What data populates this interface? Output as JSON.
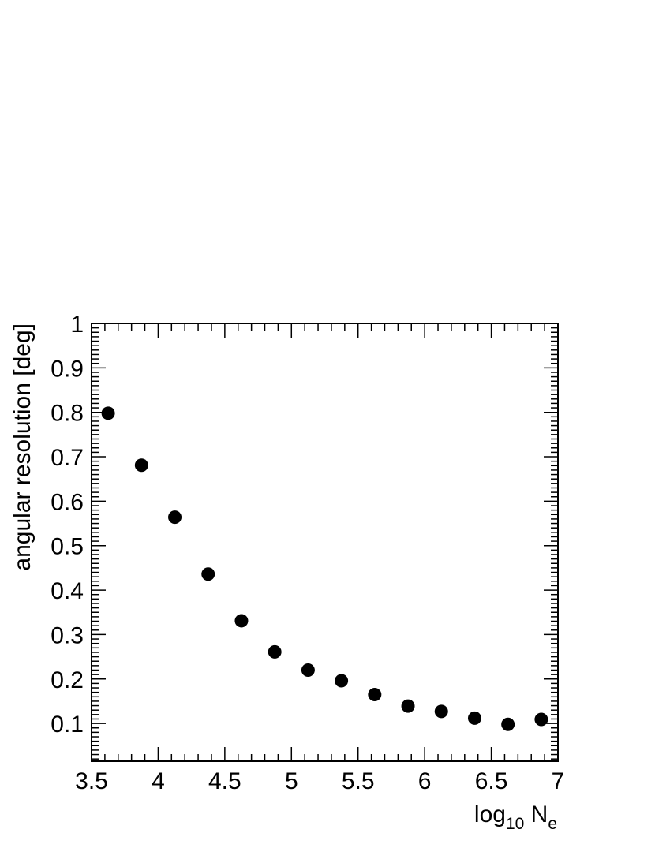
{
  "chart_data": {
    "type": "scatter",
    "title": "",
    "xlabel": "log",
    "xlabel_sub": "10",
    "xlabel_tail": " N",
    "xlabel_tail_sub": "e",
    "ylabel": "angular resolution [deg]",
    "xlim": [
      3.5,
      7
    ],
    "ylim": [
      0.015,
      1.0
    ],
    "xticks": [
      3.5,
      4,
      4.5,
      5,
      5.5,
      6,
      6.5,
      7
    ],
    "xtick_labels": [
      "3.5",
      "4",
      "4.5",
      "5",
      "5.5",
      "6",
      "6.5",
      "7"
    ],
    "yticks": [
      0.1,
      0.2,
      0.3,
      0.4,
      0.5,
      0.6,
      0.7,
      0.8,
      0.9,
      1
    ],
    "ytick_labels": [
      "0.1",
      "0.2",
      "0.3",
      "0.4",
      "0.5",
      "0.6",
      "0.7",
      "0.8",
      "0.9",
      "1"
    ],
    "grid": false,
    "marker_color": "#000000",
    "series": [
      {
        "x": [
          3.625,
          3.875,
          4.125,
          4.375,
          4.625,
          4.875,
          5.125,
          5.375,
          5.625,
          5.875,
          6.125,
          6.375,
          6.625,
          6.875
        ],
        "y": [
          0.798,
          0.681,
          0.564,
          0.436,
          0.331,
          0.261,
          0.22,
          0.196,
          0.165,
          0.139,
          0.127,
          0.112,
          0.098,
          0.109
        ]
      }
    ]
  }
}
